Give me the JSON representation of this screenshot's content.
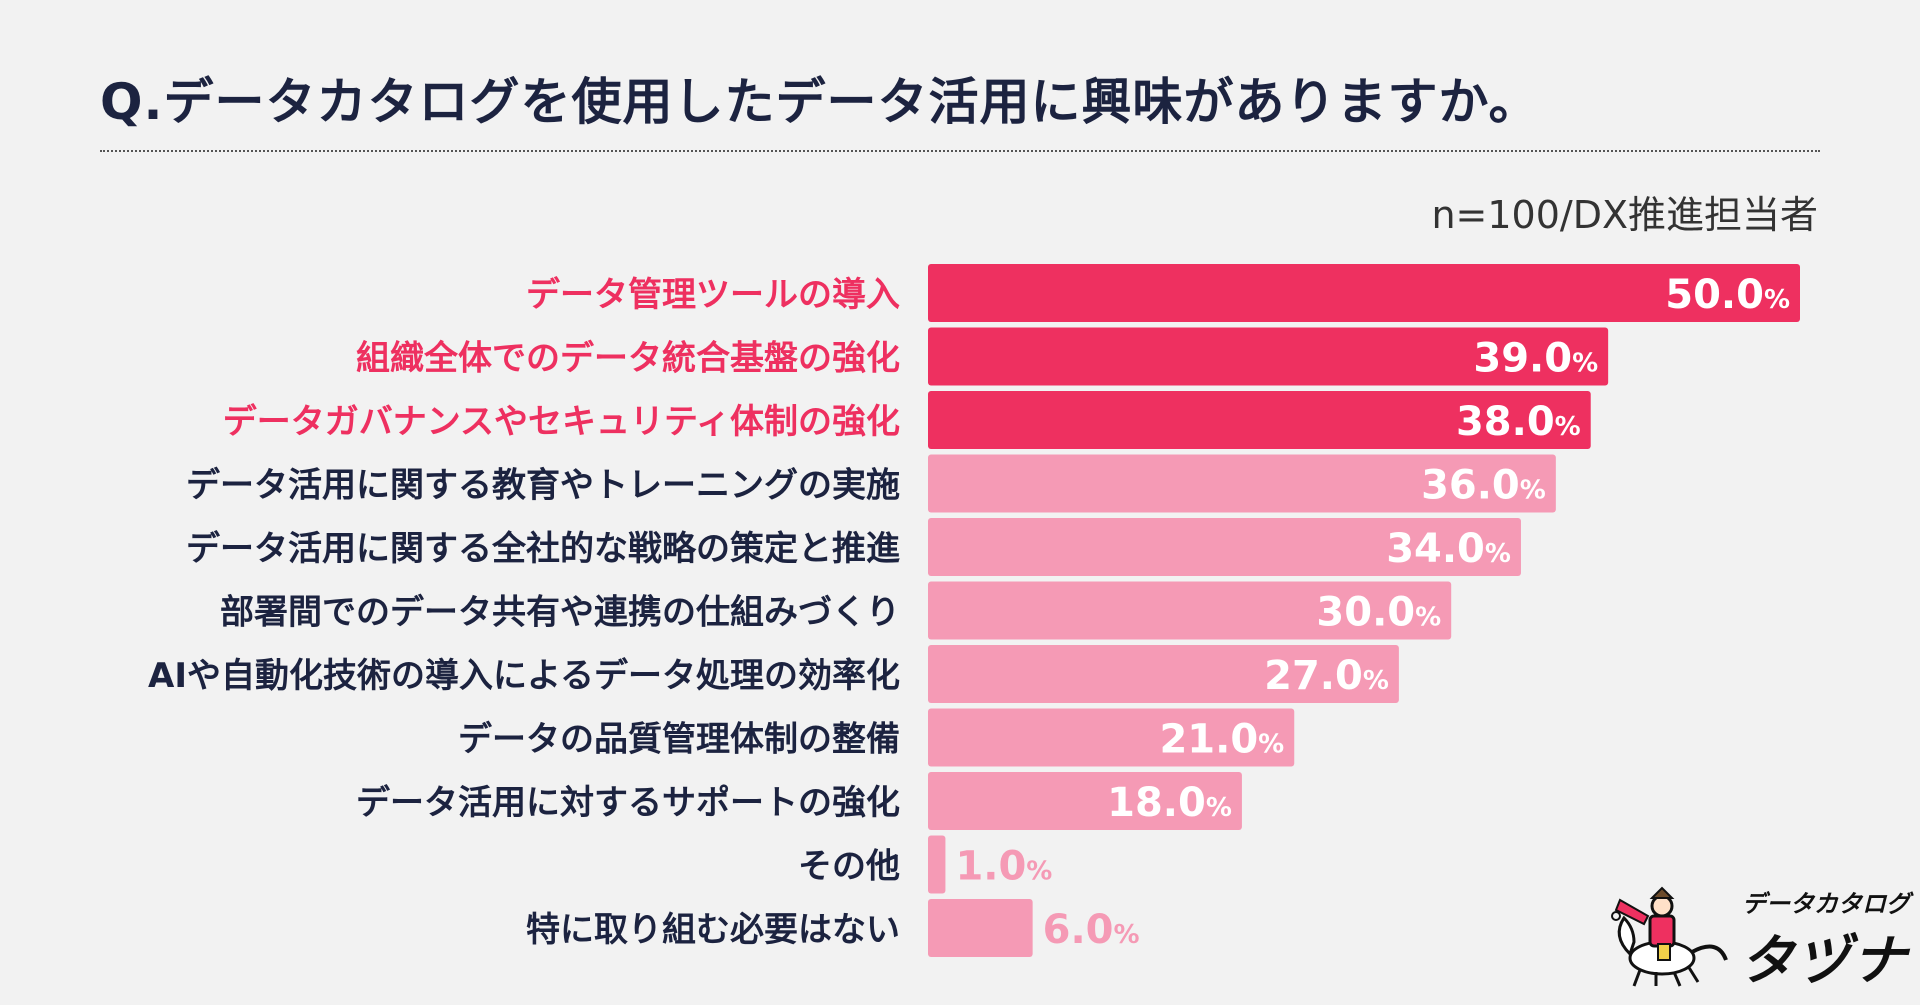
{
  "header": {
    "title": "Q.データカタログを使用したデータ活用に興味がありますか。",
    "sample": "n=100/DX推進担当者"
  },
  "colors": {
    "highlight": "#ee3060",
    "normal": "#f59ab5",
    "text_dark": "#1c2340"
  },
  "chart_data": {
    "type": "bar",
    "orientation": "horizontal",
    "title": "Q.データカタログを使用したデータ活用に興味がありますか。",
    "unit": "%",
    "xlim": [
      0,
      50
    ],
    "categories": [
      "データ管理ツールの導入",
      "組織全体でのデータ統合基盤の強化",
      "データガバナンスやセキュリティ体制の強化",
      "データ活用に関する教育やトレーニングの実施",
      "データ活用に関する全社的な戦略の策定と推進",
      "部署間でのデータ共有や連携の仕組みづくり",
      "AIや自動化技術の導入によるデータ処理の効率化",
      "データの品質管理体制の整備",
      "データ活用に対するサポートの強化",
      "その他",
      "特に取り組む必要はない"
    ],
    "values": [
      50.0,
      39.0,
      38.0,
      36.0,
      34.0,
      30.0,
      27.0,
      21.0,
      18.0,
      1.0,
      6.0
    ],
    "labels": [
      "50.0",
      "39.0",
      "38.0",
      "36.0",
      "34.0",
      "30.0",
      "27.0",
      "21.0",
      "18.0",
      "1.0",
      "6.0"
    ],
    "highlighted": [
      true,
      true,
      true,
      false,
      false,
      false,
      false,
      false,
      false,
      false,
      false
    ]
  },
  "logo": {
    "line1": "データカタログ",
    "line2": "タヅナ"
  }
}
